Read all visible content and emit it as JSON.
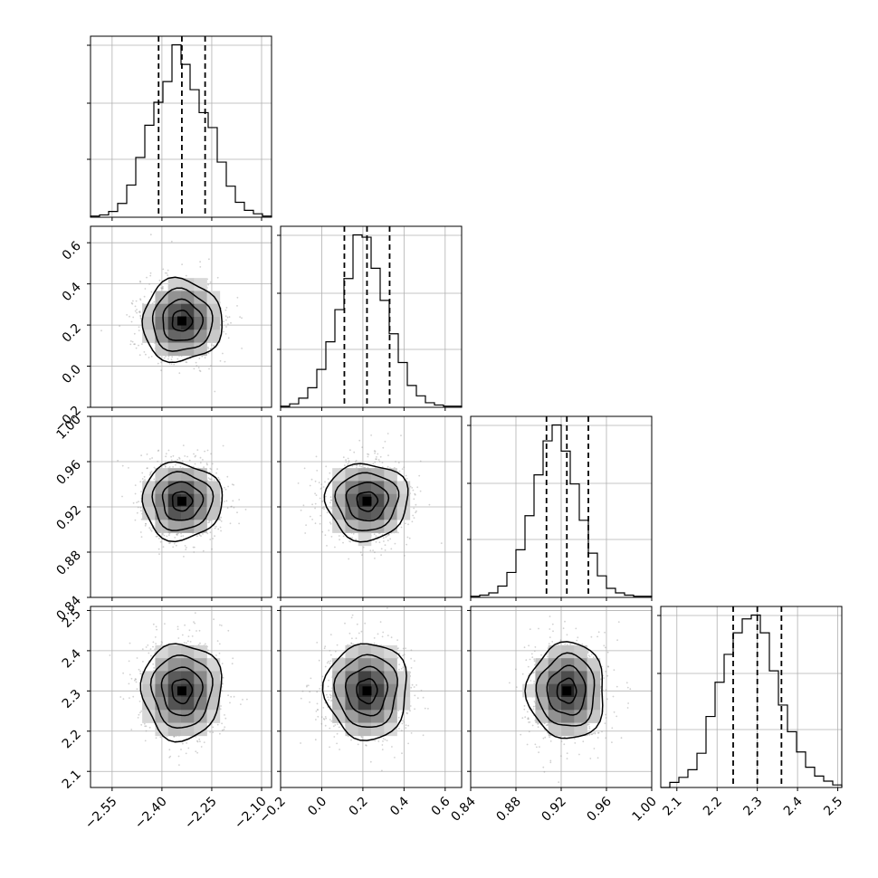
{
  "chart_data": {
    "type": "corner",
    "grid": true,
    "params": [
      {
        "ticks": [
          -2.55,
          -2.4,
          -2.25,
          -2.1
        ],
        "tick_labels": [
          "−2.55",
          "−2.40",
          "−2.25",
          "−2.10"
        ],
        "range": [
          -2.615,
          -2.07
        ],
        "mean": -2.34,
        "sigma": 0.06,
        "quantiles": [
          -2.41,
          -2.34,
          -2.27
        ]
      },
      {
        "ticks": [
          -0.2,
          0.0,
          0.2,
          0.4,
          0.6
        ],
        "tick_labels": [
          "−0.2",
          "0.0",
          "0.2",
          "0.4",
          "0.6"
        ],
        "range": [
          -0.2,
          0.68
        ],
        "mean": 0.22,
        "sigma": 0.1,
        "quantiles": [
          0.11,
          0.22,
          0.33
        ]
      },
      {
        "ticks": [
          0.84,
          0.88,
          0.92,
          0.96,
          1.0
        ],
        "tick_labels": [
          "0.84",
          "0.88",
          "0.92",
          "0.96",
          "1.00"
        ],
        "range": [
          0.84,
          1.0
        ],
        "mean": 0.925,
        "sigma": 0.017,
        "quantiles": [
          0.907,
          0.925,
          0.944
        ]
      },
      {
        "ticks": [
          2.1,
          2.2,
          2.3,
          2.4,
          2.5
        ],
        "tick_labels": [
          "2.1",
          "2.2",
          "2.3",
          "2.4",
          "2.5"
        ],
        "range": [
          2.06,
          2.51
        ],
        "mean": 2.3,
        "sigma": 0.06,
        "quantiles": [
          2.24,
          2.3,
          2.36
        ]
      }
    ],
    "histograms": [
      {
        "param": 0,
        "bins": 20,
        "values": [
          1,
          2,
          5,
          12,
          28,
          52,
          80,
          100,
          118,
          150,
          133,
          111,
          91,
          78,
          48,
          27,
          13,
          6,
          3,
          1
        ]
      },
      {
        "param": 1,
        "bins": 20,
        "values": [
          1,
          3,
          8,
          17,
          33,
          57,
          85,
          112,
          150,
          148,
          121,
          93,
          64,
          39,
          19,
          10,
          4,
          2,
          1,
          1
        ]
      },
      {
        "param": 2,
        "bins": 20,
        "values": [
          1,
          2,
          4,
          10,
          22,
          42,
          72,
          108,
          138,
          152,
          129,
          100,
          68,
          39,
          19,
          8,
          4,
          2,
          1,
          1
        ]
      },
      {
        "param": 3,
        "bins": 20,
        "values": [
          0,
          4,
          8,
          14,
          27,
          56,
          83,
          105,
          122,
          133,
          136,
          122,
          92,
          65,
          44,
          28,
          16,
          9,
          5,
          2
        ]
      }
    ],
    "contour_levels_sigma": [
      0.5,
      1.0,
      1.5,
      2.0
    ]
  }
}
